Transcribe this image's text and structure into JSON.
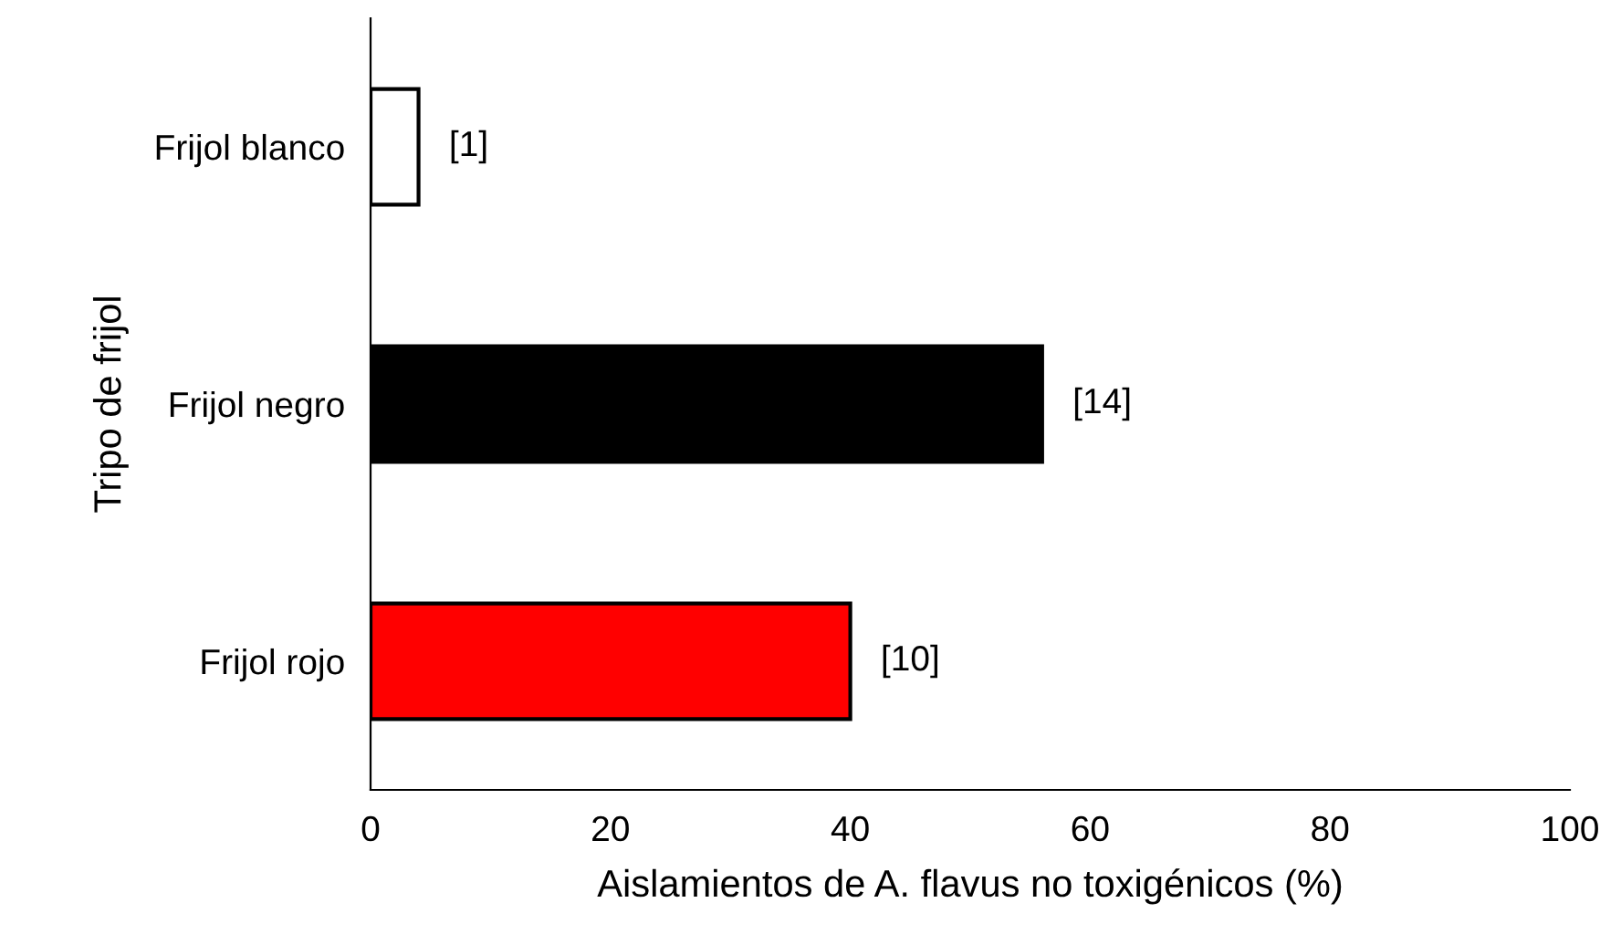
{
  "chart_data": {
    "type": "bar",
    "orientation": "horizontal",
    "xlabel": "Aislamientos de A. flavus no toxigénicos (%)",
    "ylabel": "Tripo de frijol",
    "categories": [
      "Frijol blanco",
      "Frijol negro",
      "Frijol rojo"
    ],
    "values": [
      4,
      56,
      40
    ],
    "colors": [
      "#ffffff",
      "#000000",
      "#ff0000"
    ],
    "annotations": [
      {
        "text": "[1]",
        "x": 4,
        "y": "Frijol blanco"
      },
      {
        "text": "[14]",
        "x": 56,
        "y": "Frijol negro"
      },
      {
        "text": "[10]",
        "x": 40,
        "y": "Frijol rojo"
      }
    ],
    "xlim": [
      0,
      100
    ],
    "xticks": [
      0,
      20,
      40,
      60,
      80,
      100
    ],
    "grid": false,
    "legend": false
  }
}
